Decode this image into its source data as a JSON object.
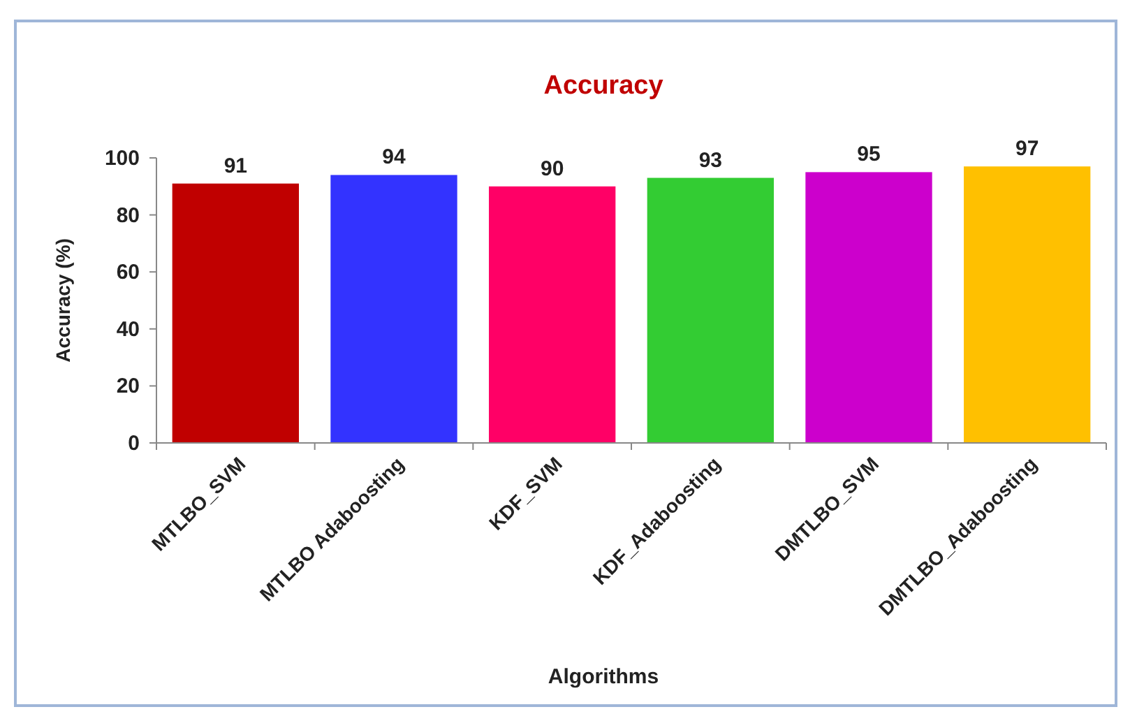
{
  "chart_data": {
    "type": "bar",
    "title": "Accuracy",
    "xlabel": "Algorithms",
    "ylabel": "Accuracy (%)",
    "categories": [
      "MTLBO_SVM",
      "MTLBO Adaboosting",
      "KDF_SVM",
      "KDF_Adaboosting",
      "DMTLBO_SVM",
      "DMTLBO_Adaboosting"
    ],
    "values": [
      91,
      94,
      90,
      93,
      95,
      97
    ],
    "colors": [
      "#c00000",
      "#3333ff",
      "#ff0066",
      "#33cc33",
      "#cc00cc",
      "#ffc000"
    ],
    "ylim": [
      0,
      100
    ],
    "yticks": [
      0,
      20,
      40,
      60,
      80,
      100
    ],
    "data_labels": true
  }
}
